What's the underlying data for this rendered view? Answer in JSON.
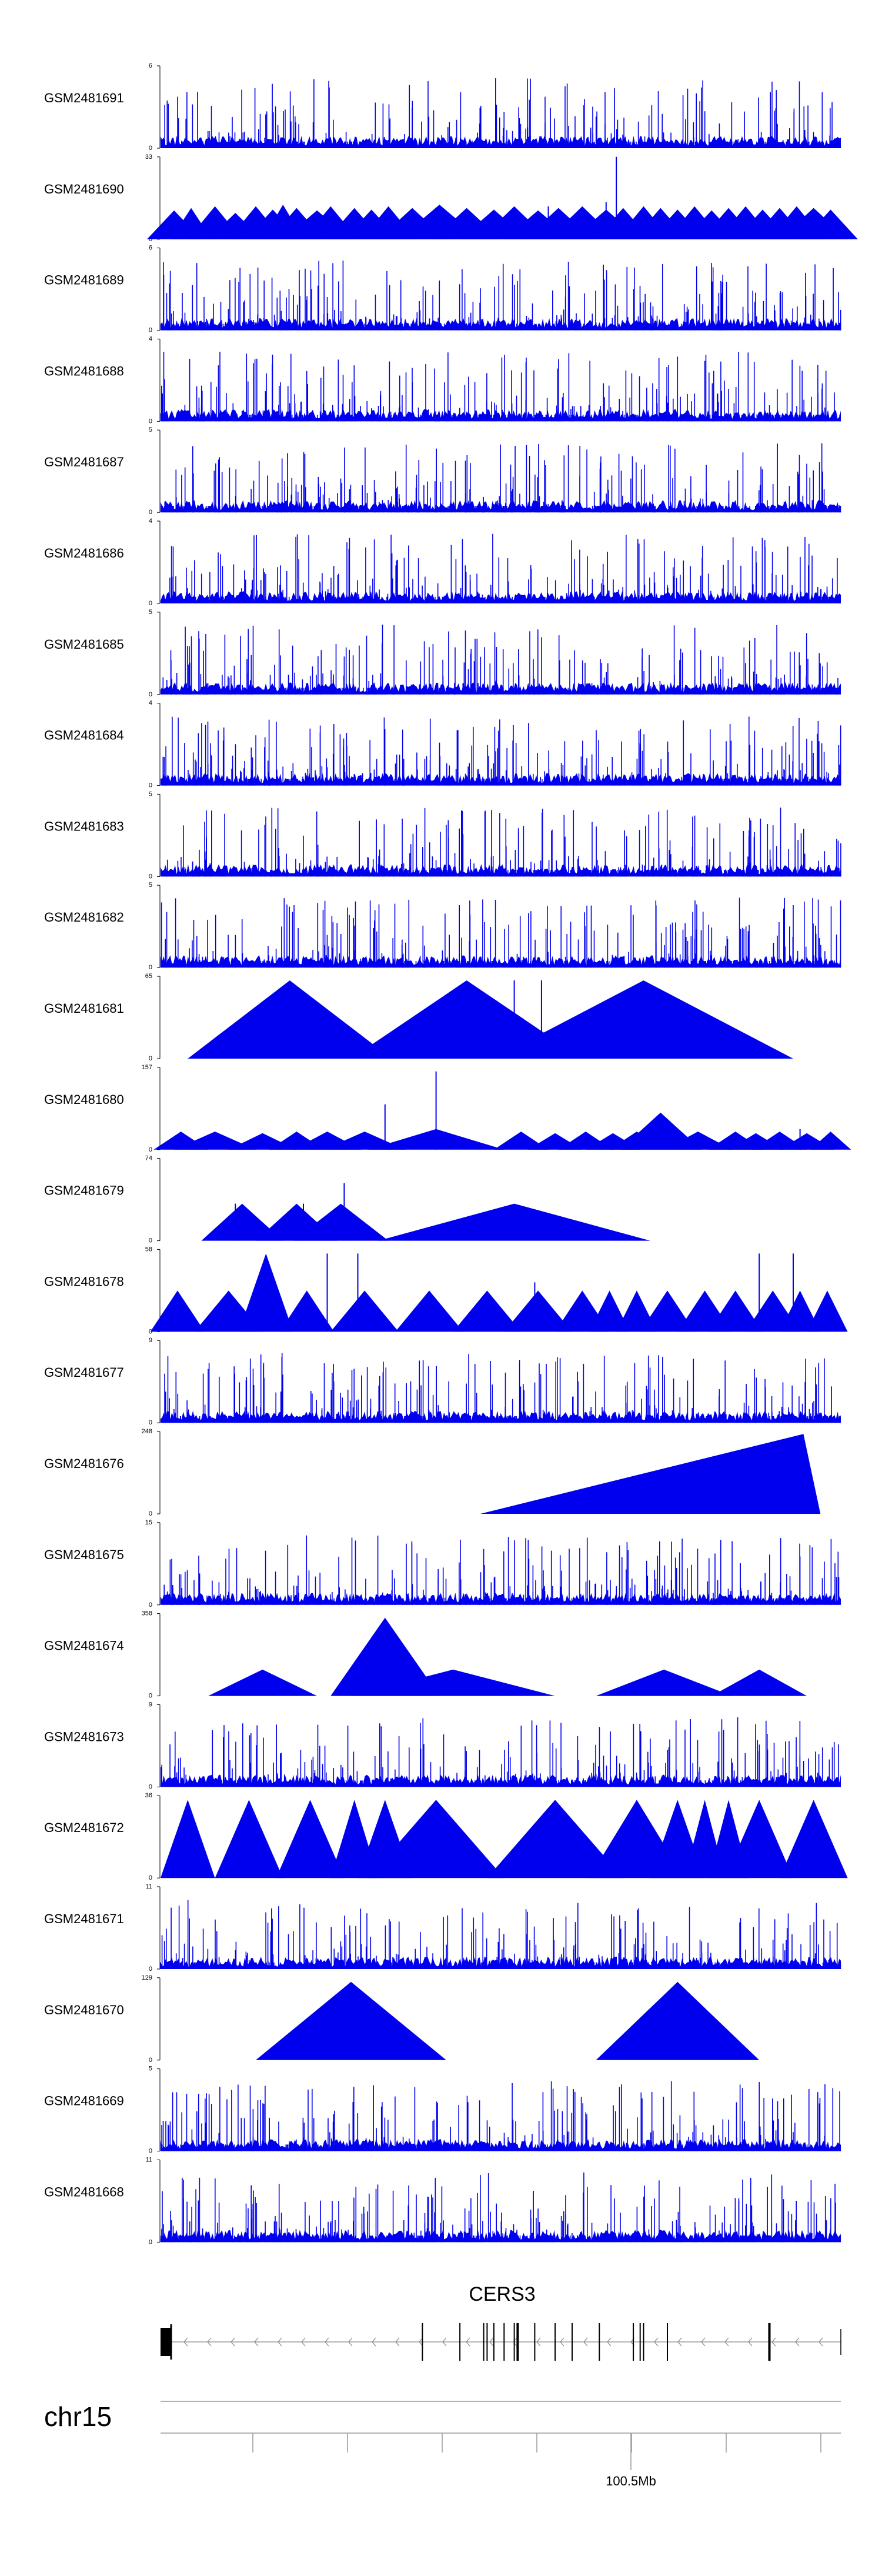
{
  "chart_data": {
    "type": "genome-browser-coverage",
    "chromosome": "chr15",
    "gene": {
      "name": "CERS3",
      "strand": "-",
      "exon_count": 17
    },
    "coordinate_axis": {
      "label": "100.5Mb",
      "major_tick_count": 8
    },
    "tracks": [
      {
        "name": "GSM2481691",
        "ymax": "6",
        "ymin": "0",
        "style": "dense",
        "seed": 11
      },
      {
        "name": "GSM2481690",
        "ymax": "33",
        "ymin": "0",
        "style": "sparse",
        "peaks": [
          [
            0.02,
            0.04
          ],
          [
            0.045,
            0.03
          ],
          [
            0.08,
            0.04
          ],
          [
            0.11,
            0.04
          ],
          [
            0.14,
            0.04
          ],
          [
            0.165,
            0.04
          ],
          [
            0.18,
            0.03
          ],
          [
            0.2,
            0.04
          ],
          [
            0.23,
            0.05
          ],
          [
            0.25,
            0.04
          ],
          [
            0.285,
            0.04
          ],
          [
            0.31,
            0.04
          ],
          [
            0.335,
            0.04
          ],
          [
            0.37,
            0.05
          ],
          [
            0.41,
            0.06
          ],
          [
            0.45,
            0.05
          ],
          [
            0.49,
            0.05
          ],
          [
            0.52,
            0.05
          ],
          [
            0.555,
            0.05
          ],
          [
            0.585,
            0.05
          ],
          [
            0.62,
            0.05
          ],
          [
            0.655,
            0.05
          ],
          [
            0.68,
            0.04
          ],
          [
            0.71,
            0.04
          ],
          [
            0.735,
            0.04
          ],
          [
            0.76,
            0.04
          ],
          [
            0.785,
            0.04
          ],
          [
            0.81,
            0.04
          ],
          [
            0.835,
            0.04
          ],
          [
            0.86,
            0.04
          ],
          [
            0.885,
            0.04
          ],
          [
            0.91,
            0.04
          ],
          [
            0.935,
            0.04
          ],
          [
            0.96,
            0.05
          ],
          [
            0.985,
            0.04
          ]
        ],
        "heights": [
          0.35,
          0.38,
          0.4,
          0.32,
          0.4,
          0.36,
          0.42,
          0.38,
          0.35,
          0.4,
          0.38,
          0.36,
          0.4,
          0.38,
          0.42,
          0.38,
          0.36,
          0.4,
          0.35,
          0.38,
          0.4,
          0.36,
          0.38,
          0.4,
          0.38,
          0.36,
          0.4,
          0.35,
          0.38,
          0.4,
          0.36,
          0.38,
          0.4,
          0.38,
          0.36
        ],
        "spikes": [
          [
            0.67,
            1.0
          ],
          [
            0.655,
            0.45
          ],
          [
            0.57,
            0.4
          ]
        ],
        "seed": 12
      },
      {
        "name": "GSM2481689",
        "ymax": "6",
        "ymin": "0",
        "style": "dense",
        "seed": 13
      },
      {
        "name": "GSM2481688",
        "ymax": "4",
        "ymin": "0",
        "style": "dense",
        "seed": 14
      },
      {
        "name": "GSM2481687",
        "ymax": "5",
        "ymin": "0",
        "style": "dense",
        "seed": 15
      },
      {
        "name": "GSM2481686",
        "ymax": "4",
        "ymin": "0",
        "style": "dense",
        "seed": 16
      },
      {
        "name": "GSM2481685",
        "ymax": "5",
        "ymin": "0",
        "style": "dense",
        "seed": 17
      },
      {
        "name": "GSM2481684",
        "ymax": "4",
        "ymin": "0",
        "style": "dense",
        "seed": 18
      },
      {
        "name": "GSM2481683",
        "ymax": "5",
        "ymin": "0",
        "style": "dense",
        "seed": 19
      },
      {
        "name": "GSM2481682",
        "ymax": "5",
        "ymin": "0",
        "style": "dense",
        "seed": 20
      },
      {
        "name": "GSM2481681",
        "ymax": "65",
        "ymin": "0",
        "style": "sparse",
        "peaks": [
          [
            0.19,
            0.15
          ],
          [
            0.45,
            0.17
          ],
          [
            0.535,
            0.02
          ],
          [
            0.71,
            0.22
          ]
        ],
        "heights": [
          0.95,
          0.95,
          0.2,
          0.95
        ],
        "spikes": [
          [
            0.52,
            0.95
          ],
          [
            0.56,
            0.95
          ]
        ],
        "seed": 21
      },
      {
        "name": "GSM2481680",
        "ymax": "157",
        "ymin": "0",
        "style": "sparse",
        "peaks": [
          [
            0.03,
            0.04
          ],
          [
            0.08,
            0.06
          ],
          [
            0.15,
            0.05
          ],
          [
            0.2,
            0.04
          ],
          [
            0.245,
            0.05
          ],
          [
            0.3,
            0.06
          ],
          [
            0.405,
            0.1
          ],
          [
            0.53,
            0.04
          ],
          [
            0.58,
            0.04
          ],
          [
            0.625,
            0.04
          ],
          [
            0.665,
            0.04
          ],
          [
            0.7,
            0.04
          ],
          [
            0.735,
            0.06
          ],
          [
            0.79,
            0.05
          ],
          [
            0.845,
            0.04
          ],
          [
            0.875,
            0.04
          ],
          [
            0.91,
            0.04
          ],
          [
            0.95,
            0.04
          ],
          [
            0.985,
            0.03
          ]
        ],
        "heights": [
          0.22,
          0.22,
          0.2,
          0.22,
          0.22,
          0.22,
          0.25,
          0.22,
          0.2,
          0.22,
          0.2,
          0.22,
          0.45,
          0.22,
          0.22,
          0.2,
          0.22,
          0.2,
          0.22
        ],
        "spikes": [
          [
            0.405,
            0.95
          ],
          [
            0.33,
            0.55
          ],
          [
            0.94,
            0.25
          ]
        ],
        "seed": 22
      },
      {
        "name": "GSM2481679",
        "ymax": "74",
        "ymin": "0",
        "style": "sparse",
        "peaks": [
          [
            0.12,
            0.06
          ],
          [
            0.2,
            0.06
          ],
          [
            0.265,
            0.07
          ],
          [
            0.52,
            0.2
          ]
        ],
        "heights": [
          0.45,
          0.45,
          0.45,
          0.45
        ],
        "spikes": [
          [
            0.11,
            0.45
          ],
          [
            0.21,
            0.45
          ],
          [
            0.27,
            0.7
          ]
        ],
        "seed": 23
      },
      {
        "name": "GSM2481678",
        "ymax": "58",
        "ymin": "0",
        "style": "sparse",
        "peaks": [
          [
            0.025,
            0.04
          ],
          [
            0.1,
            0.05
          ],
          [
            0.155,
            0.04
          ],
          [
            0.215,
            0.04
          ],
          [
            0.3,
            0.05
          ],
          [
            0.395,
            0.05
          ],
          [
            0.48,
            0.05
          ],
          [
            0.555,
            0.05
          ],
          [
            0.62,
            0.04
          ],
          [
            0.66,
            0.03
          ],
          [
            0.7,
            0.03
          ],
          [
            0.745,
            0.04
          ],
          [
            0.8,
            0.04
          ],
          [
            0.845,
            0.04
          ],
          [
            0.9,
            0.04
          ],
          [
            0.94,
            0.03
          ],
          [
            0.98,
            0.03
          ]
        ],
        "heights": [
          0.5,
          0.5,
          0.95,
          0.5,
          0.5,
          0.5,
          0.5,
          0.5,
          0.5,
          0.5,
          0.5,
          0.5,
          0.5,
          0.5,
          0.5,
          0.5,
          0.5
        ],
        "spikes": [
          [
            0.245,
            0.95
          ],
          [
            0.29,
            0.95
          ],
          [
            0.88,
            0.95
          ],
          [
            0.93,
            0.95
          ],
          [
            0.55,
            0.6
          ]
        ],
        "seed": 24
      },
      {
        "name": "GSM2481677",
        "ymax": "9",
        "ymin": "0",
        "style": "dense",
        "seed": 25
      },
      {
        "name": "GSM2481676",
        "ymax": "248",
        "ymin": "0",
        "style": "sparse",
        "peaks": [
          [
            0.94,
            0.47
          ]
        ],
        "heights": [
          0.97
        ],
        "asymmetric": true,
        "seed": 26
      },
      {
        "name": "GSM2481675",
        "ymax": "15",
        "ymin": "0",
        "style": "dense",
        "seed": 27
      },
      {
        "name": "GSM2481674",
        "ymax": "358",
        "ymin": "0",
        "style": "sparse",
        "peaks": [
          [
            0.15,
            0.08
          ],
          [
            0.33,
            0.08
          ],
          [
            0.43,
            0.15
          ],
          [
            0.74,
            0.1
          ],
          [
            0.88,
            0.07
          ]
        ],
        "heights": [
          0.32,
          0.95,
          0.32,
          0.32,
          0.32
        ],
        "seed": 28
      },
      {
        "name": "GSM2481673",
        "ymax": "9",
        "ymin": "0",
        "style": "dense",
        "seed": 29
      },
      {
        "name": "GSM2481672",
        "ymax": "36",
        "ymin": "0",
        "style": "sparse",
        "peaks": [
          [
            0.04,
            0.04
          ],
          [
            0.13,
            0.05
          ],
          [
            0.22,
            0.05
          ],
          [
            0.285,
            0.035
          ],
          [
            0.33,
            0.04
          ],
          [
            0.405,
            0.1
          ],
          [
            0.58,
            0.1
          ],
          [
            0.7,
            0.07
          ],
          [
            0.76,
            0.04
          ],
          [
            0.8,
            0.03
          ],
          [
            0.835,
            0.03
          ],
          [
            0.88,
            0.05
          ],
          [
            0.96,
            0.05
          ]
        ],
        "heights": [
          0.95,
          0.95,
          0.95,
          0.95,
          0.95,
          0.95,
          0.95,
          0.95,
          0.95,
          0.95,
          0.95,
          0.95,
          0.95
        ],
        "seed": 30
      },
      {
        "name": "GSM2481671",
        "ymax": "11",
        "ymin": "0",
        "style": "dense",
        "seed": 31
      },
      {
        "name": "GSM2481670",
        "ymax": "129",
        "ymin": "0",
        "style": "sparse",
        "peaks": [
          [
            0.28,
            0.14
          ],
          [
            0.76,
            0.12
          ]
        ],
        "heights": [
          0.95,
          0.95
        ],
        "seed": 32
      },
      {
        "name": "GSM2481669",
        "ymax": "5",
        "ymin": "0",
        "style": "dense",
        "seed": 33
      },
      {
        "name": "GSM2481668",
        "ymax": "11",
        "ymin": "0",
        "style": "dense",
        "seed": 34
      }
    ]
  }
}
